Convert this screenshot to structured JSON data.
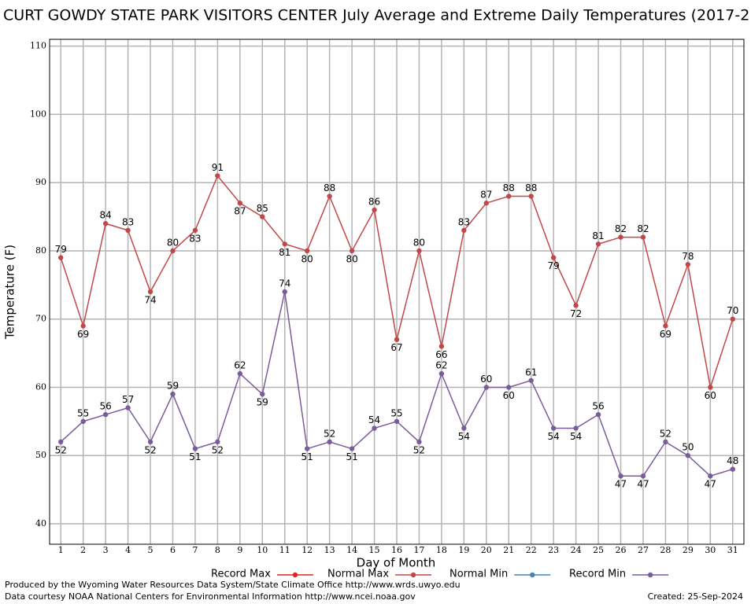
{
  "chart_data": {
    "type": "line",
    "title": "CURT GOWDY STATE PARK VISITORS CENTER July Average and Extreme Daily Temperatures (2017-2",
    "x_label": "Day of Month",
    "y_label": "Temperature (F)",
    "x": [
      1,
      2,
      3,
      4,
      5,
      6,
      7,
      8,
      9,
      10,
      11,
      12,
      13,
      14,
      15,
      16,
      17,
      18,
      19,
      20,
      21,
      22,
      23,
      24,
      25,
      26,
      27,
      28,
      29,
      30,
      31
    ],
    "xlim": [
      0.5,
      31.5
    ],
    "xticks": [
      1,
      2,
      3,
      4,
      5,
      6,
      7,
      8,
      9,
      10,
      11,
      12,
      13,
      14,
      15,
      16,
      17,
      18,
      19,
      20,
      21,
      22,
      23,
      24,
      25,
      26,
      27,
      28,
      29,
      30,
      31
    ],
    "ylim": [
      37,
      111
    ],
    "yticks": [
      40,
      50,
      60,
      70,
      80,
      90,
      100,
      110
    ],
    "grid": true,
    "series": [
      {
        "name": "Record Max",
        "color": "#e02424",
        "values": [
          null,
          null,
          null,
          null,
          null,
          null,
          null,
          null,
          null,
          null,
          null,
          null,
          null,
          null,
          null,
          null,
          null,
          null,
          null,
          null,
          null,
          null,
          null,
          null,
          null,
          null,
          null,
          null,
          null,
          null,
          null
        ]
      },
      {
        "name": "Normal Max",
        "color": "#c04848",
        "values": [
          79,
          69,
          84,
          83,
          74,
          80,
          83,
          91,
          87,
          85,
          81,
          80,
          88,
          80,
          86,
          67,
          80,
          66,
          83,
          87,
          88,
          88,
          79,
          72,
          81,
          82,
          82,
          69,
          78,
          60,
          70
        ]
      },
      {
        "name": "Normal Min",
        "color": "#4682b4",
        "values": [
          null,
          null,
          null,
          null,
          null,
          null,
          null,
          null,
          null,
          null,
          null,
          null,
          null,
          null,
          null,
          null,
          null,
          null,
          null,
          null,
          null,
          null,
          null,
          null,
          null,
          null,
          null,
          null,
          null,
          null,
          null
        ]
      },
      {
        "name": "Record Min",
        "color": "#7a5c9a",
        "values": [
          52,
          55,
          56,
          57,
          52,
          59,
          51,
          52,
          62,
          59,
          74,
          51,
          52,
          51,
          54,
          55,
          52,
          62,
          54,
          60,
          60,
          61,
          54,
          54,
          56,
          47,
          47,
          52,
          50,
          47,
          48
        ]
      }
    ],
    "footer": [
      "Produced by the Wyoming Water Resources Data System/State Climate Office http://www.wrds.uwyo.edu",
      "Data courtesy NOAA National Centers for Environmental Information http://www.ncei.noaa.gov"
    ],
    "created": "Created:  25-Sep-2024"
  }
}
